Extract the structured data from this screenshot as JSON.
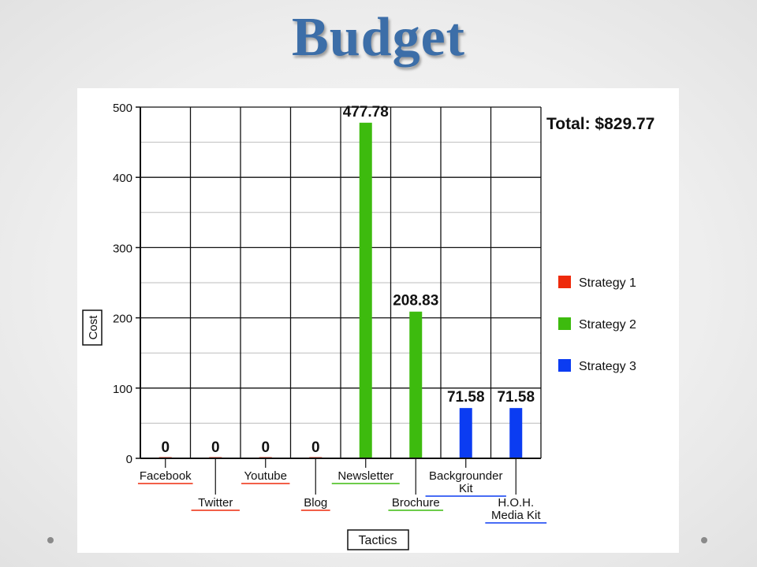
{
  "slide": {
    "title": "Budget"
  },
  "chart_data": {
    "type": "bar",
    "title": "",
    "xlabel": "Tactics",
    "ylabel": "Cost",
    "ylim": [
      0,
      500
    ],
    "yticks": [
      0,
      100,
      200,
      300,
      400,
      500
    ],
    "grid": true,
    "legend_position": "right",
    "annotation": "Total: $829.77",
    "categories": [
      "Facebook",
      "Twitter",
      "Youtube",
      "Blog",
      "Newsletter",
      "Brochure",
      "Backgrounder Kit",
      "H.O.H. Media Kit"
    ],
    "category_label_lines": [
      [
        "Facebook"
      ],
      [
        "Twitter"
      ],
      [
        "Youtube"
      ],
      [
        "Blog"
      ],
      [
        "Newsletter"
      ],
      [
        "Brochure"
      ],
      [
        "Backgrounder",
        "Kit"
      ],
      [
        "H.O.H.",
        "Media Kit"
      ]
    ],
    "values": [
      0,
      0,
      0,
      0,
      477.78,
      208.83,
      71.58,
      71.58
    ],
    "value_labels": [
      "0",
      "0",
      "0",
      "0",
      "477.78",
      "208.83",
      "71.58",
      "71.58"
    ],
    "strategy_index": [
      0,
      0,
      0,
      0,
      1,
      1,
      2,
      2
    ],
    "series": [
      {
        "name": "Strategy 1",
        "color": "#ee2a0b"
      },
      {
        "name": "Strategy 2",
        "color": "#3dbb0e"
      },
      {
        "name": "Strategy 3",
        "color": "#0b3cf2"
      }
    ]
  }
}
